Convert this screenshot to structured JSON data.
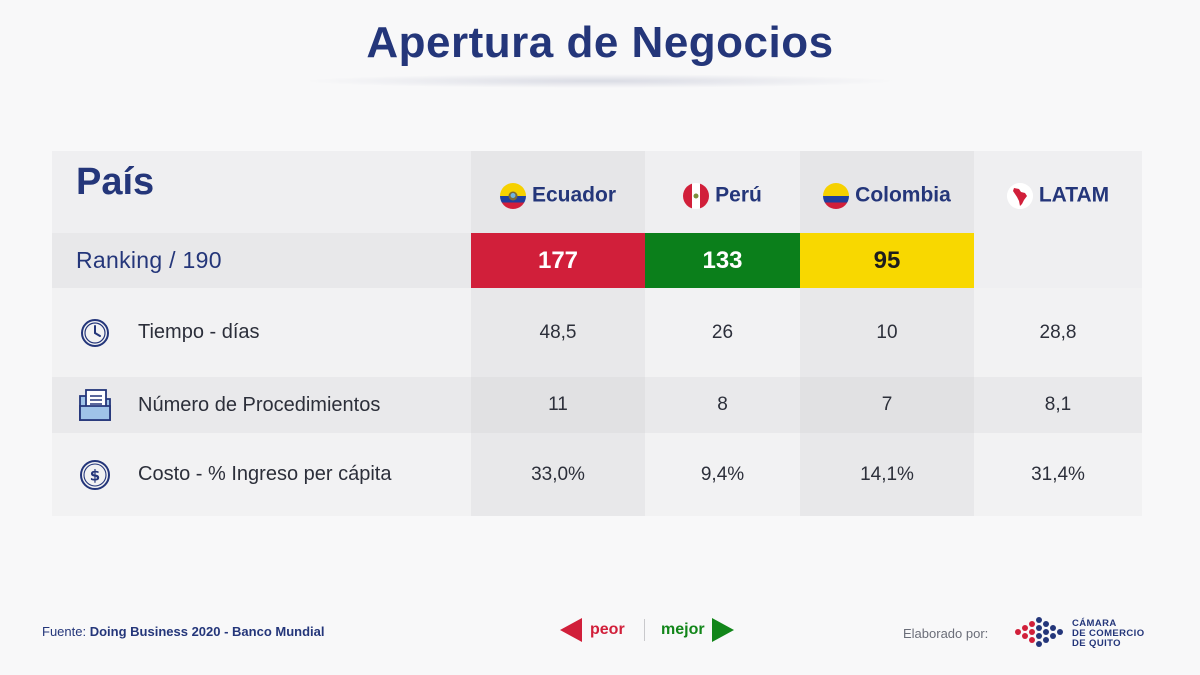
{
  "title": "Apertura de Negocios",
  "header": {
    "label": "País",
    "countries": [
      {
        "name": "Ecuador",
        "flag": "ecuador-flag-icon"
      },
      {
        "name": "Perú",
        "flag": "peru-flag-icon"
      },
      {
        "name": "Colombia",
        "flag": "colombia-flag-icon"
      },
      {
        "name": "LATAM",
        "flag": "latam-map-icon"
      }
    ]
  },
  "ranking": {
    "label": "Ranking / 190",
    "values": [
      "177",
      "133",
      "95",
      ""
    ],
    "colors": [
      "#d11f3a",
      "#0b7f1b",
      "#f8d800",
      ""
    ]
  },
  "rows": [
    {
      "icon": "clock-icon",
      "label": "Tiempo - días",
      "values": [
        "48,5",
        "26",
        "10",
        "28,8"
      ]
    },
    {
      "icon": "documents-icon",
      "label": "Número de Procedimientos",
      "values": [
        "11",
        "8",
        "7",
        "8,1"
      ]
    },
    {
      "icon": "dollar-icon",
      "label": "Costo - % Ingreso per cápita",
      "values": [
        "33,0%",
        "9,4%",
        "14,1%",
        "31,4%"
      ]
    }
  ],
  "footer": {
    "source_prefix": "Fuente:",
    "source": "Doing Business 2020 - Banco Mundial",
    "legend_worse": "peor",
    "legend_better": "mejor",
    "made_by": "Elaborado por:",
    "logo_text": [
      "CÁMARA",
      "DE COMERCIO",
      "DE QUITO"
    ]
  },
  "colors": {
    "brand": "#24367a",
    "worse": "#d11f3a",
    "better": "#12861a"
  }
}
